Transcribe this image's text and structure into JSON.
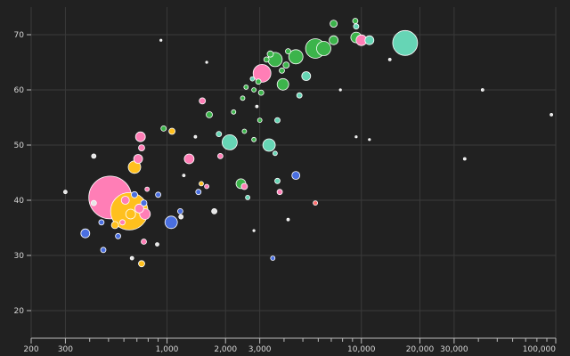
{
  "chart_data": {
    "type": "scatter",
    "title": "",
    "xlabel": "",
    "ylabel": "",
    "x_scale": "log",
    "xlim": [
      200,
      100000
    ],
    "ylim": [
      15,
      75
    ],
    "grid": true,
    "legend": "none",
    "background": "#212121",
    "group_colors": {
      "pink": "#ff7eb6",
      "yellow": "#ffc01e",
      "blue": "#4a6fe0",
      "green": "#3cb44b",
      "teal": "#66d5b5",
      "red": "#ff6e6e",
      "light": "#e5e5e5"
    },
    "x_ticks": [
      {
        "value": 200,
        "label": "200"
      },
      {
        "value": 300,
        "label": "300"
      },
      {
        "value": 1000,
        "label": "1,000"
      },
      {
        "value": 2000,
        "label": "2,000"
      },
      {
        "value": 3000,
        "label": "3,000"
      },
      {
        "value": 10000,
        "label": "10,000"
      },
      {
        "value": 20000,
        "label": "20,000"
      },
      {
        "value": 30000,
        "label": "30,000"
      },
      {
        "value": 100000,
        "label": "100,000"
      }
    ],
    "x_minor_ticks": [
      400,
      500,
      600,
      700,
      800,
      900,
      4000,
      5000,
      6000,
      7000,
      8000,
      9000,
      40000,
      50000,
      60000,
      70000,
      80000,
      90000
    ],
    "y_ticks": [
      20,
      30,
      40,
      50,
      60,
      70
    ],
    "points": [
      {
        "x": 510,
        "y": 40.5,
        "r": 24,
        "group": "pink"
      },
      {
        "x": 640,
        "y": 38.0,
        "r": 21,
        "group": "yellow"
      },
      {
        "x": 16800,
        "y": 68.5,
        "r": 14,
        "group": "teal"
      },
      {
        "x": 5800,
        "y": 67.5,
        "r": 11,
        "group": "green"
      },
      {
        "x": 3080,
        "y": 63.0,
        "r": 10,
        "group": "pink"
      },
      {
        "x": 4600,
        "y": 66.0,
        "r": 8,
        "group": "green"
      },
      {
        "x": 3600,
        "y": 65.5,
        "r": 8,
        "group": "green"
      },
      {
        "x": 2100,
        "y": 50.5,
        "r": 8.5,
        "group": "teal"
      },
      {
        "x": 3350,
        "y": 50.0,
        "r": 7,
        "group": "teal"
      },
      {
        "x": 3950,
        "y": 61.0,
        "r": 6.5,
        "group": "green"
      },
      {
        "x": 6400,
        "y": 67.5,
        "r": 8,
        "group": "green"
      },
      {
        "x": 7200,
        "y": 69.0,
        "r": 5,
        "group": "green"
      },
      {
        "x": 9400,
        "y": 69.5,
        "r": 6,
        "group": "green"
      },
      {
        "x": 10000,
        "y": 69.0,
        "r": 6,
        "group": "pink"
      },
      {
        "x": 11000,
        "y": 69.0,
        "r": 5,
        "group": "teal"
      },
      {
        "x": 5200,
        "y": 62.5,
        "r": 5,
        "group": "teal"
      },
      {
        "x": 7200,
        "y": 72.0,
        "r": 4,
        "group": "green"
      },
      {
        "x": 9300,
        "y": 72.5,
        "r": 3,
        "group": "green"
      },
      {
        "x": 9400,
        "y": 71.5,
        "r": 3,
        "group": "teal"
      },
      {
        "x": 3400,
        "y": 66.5,
        "r": 3.5,
        "group": "green"
      },
      {
        "x": 4100,
        "y": 64.5,
        "r": 3.5,
        "group": "green"
      },
      {
        "x": 3900,
        "y": 63.5,
        "r": 3,
        "group": "green"
      },
      {
        "x": 4200,
        "y": 67.0,
        "r": 3,
        "group": "green"
      },
      {
        "x": 3250,
        "y": 65.5,
        "r": 3,
        "group": "green"
      },
      {
        "x": 2950,
        "y": 61.5,
        "r": 3,
        "group": "green"
      },
      {
        "x": 3050,
        "y": 59.5,
        "r": 3,
        "group": "green"
      },
      {
        "x": 2800,
        "y": 60.0,
        "r": 2.5,
        "group": "green"
      },
      {
        "x": 2550,
        "y": 60.5,
        "r": 2.5,
        "group": "green"
      },
      {
        "x": 2450,
        "y": 58.5,
        "r": 2.5,
        "group": "green"
      },
      {
        "x": 2200,
        "y": 56.0,
        "r": 2.5,
        "group": "green"
      },
      {
        "x": 4800,
        "y": 59.0,
        "r": 3,
        "group": "teal"
      },
      {
        "x": 2750,
        "y": 62.0,
        "r": 2.5,
        "group": "teal"
      },
      {
        "x": 1650,
        "y": 55.5,
        "r": 3.5,
        "group": "green"
      },
      {
        "x": 1520,
        "y": 58.0,
        "r": 3.5,
        "group": "pink"
      },
      {
        "x": 960,
        "y": 53.0,
        "r": 3,
        "group": "green"
      },
      {
        "x": 1060,
        "y": 52.5,
        "r": 3.5,
        "group": "yellow"
      },
      {
        "x": 1850,
        "y": 52.0,
        "r": 3,
        "group": "teal"
      },
      {
        "x": 2500,
        "y": 52.5,
        "r": 2.5,
        "group": "green"
      },
      {
        "x": 3000,
        "y": 54.5,
        "r": 2.5,
        "group": "green"
      },
      {
        "x": 3700,
        "y": 54.5,
        "r": 3,
        "group": "teal"
      },
      {
        "x": 2800,
        "y": 51.0,
        "r": 2.5,
        "group": "green"
      },
      {
        "x": 3600,
        "y": 48.5,
        "r": 2.5,
        "group": "teal"
      },
      {
        "x": 730,
        "y": 51.5,
        "r": 5.5,
        "group": "pink"
      },
      {
        "x": 740,
        "y": 49.5,
        "r": 3.5,
        "group": "pink"
      },
      {
        "x": 710,
        "y": 47.5,
        "r": 5,
        "group": "pink"
      },
      {
        "x": 680,
        "y": 46.0,
        "r": 7,
        "group": "yellow"
      },
      {
        "x": 1300,
        "y": 47.5,
        "r": 5.5,
        "group": "pink"
      },
      {
        "x": 1880,
        "y": 48.0,
        "r": 3,
        "group": "pink"
      },
      {
        "x": 4600,
        "y": 44.5,
        "r": 4.5,
        "group": "blue"
      },
      {
        "x": 2400,
        "y": 43.0,
        "r": 5.5,
        "group": "green"
      },
      {
        "x": 2500,
        "y": 42.5,
        "r": 3.5,
        "group": "pink"
      },
      {
        "x": 3700,
        "y": 43.5,
        "r": 3,
        "group": "teal"
      },
      {
        "x": 3800,
        "y": 41.5,
        "r": 3,
        "group": "pink"
      },
      {
        "x": 2600,
        "y": 40.5,
        "r": 2.5,
        "group": "teal"
      },
      {
        "x": 1450,
        "y": 41.5,
        "r": 3,
        "group": "blue"
      },
      {
        "x": 1500,
        "y": 43.0,
        "r": 2.5,
        "group": "yellow"
      },
      {
        "x": 1600,
        "y": 42.5,
        "r": 2.5,
        "group": "pink"
      },
      {
        "x": 1750,
        "y": 38.0,
        "r": 3,
        "group": "light"
      },
      {
        "x": 1050,
        "y": 36.0,
        "r": 7,
        "group": "blue"
      },
      {
        "x": 1170,
        "y": 38.0,
        "r": 3,
        "group": "blue"
      },
      {
        "x": 1180,
        "y": 37.0,
        "r": 2.5,
        "group": "light"
      },
      {
        "x": 900,
        "y": 41.0,
        "r": 3,
        "group": "blue"
      },
      {
        "x": 790,
        "y": 42.0,
        "r": 2.5,
        "group": "pink"
      },
      {
        "x": 680,
        "y": 41.0,
        "r": 3.5,
        "group": "blue"
      },
      {
        "x": 610,
        "y": 40.0,
        "r": 4.5,
        "group": "pink"
      },
      {
        "x": 720,
        "y": 38.5,
        "r": 5,
        "group": "pink"
      },
      {
        "x": 650,
        "y": 37.5,
        "r": 5.5,
        "group": "yellow"
      },
      {
        "x": 770,
        "y": 37.5,
        "r": 6,
        "group": "pink"
      },
      {
        "x": 760,
        "y": 39.5,
        "r": 3.5,
        "group": "blue"
      },
      {
        "x": 540,
        "y": 35.5,
        "r": 4,
        "group": "yellow"
      },
      {
        "x": 590,
        "y": 36.0,
        "r": 3,
        "group": "pink"
      },
      {
        "x": 560,
        "y": 33.5,
        "r": 3,
        "group": "blue"
      },
      {
        "x": 460,
        "y": 36.0,
        "r": 3,
        "group": "blue"
      },
      {
        "x": 420,
        "y": 39.5,
        "r": 3,
        "group": "light"
      },
      {
        "x": 380,
        "y": 34.0,
        "r": 5,
        "group": "blue"
      },
      {
        "x": 470,
        "y": 31.0,
        "r": 3,
        "group": "blue"
      },
      {
        "x": 760,
        "y": 32.5,
        "r": 3,
        "group": "pink"
      },
      {
        "x": 740,
        "y": 28.5,
        "r": 3.5,
        "group": "yellow"
      },
      {
        "x": 890,
        "y": 32.0,
        "r": 2,
        "group": "light"
      },
      {
        "x": 3500,
        "y": 29.5,
        "r": 2.5,
        "group": "blue"
      },
      {
        "x": 5800,
        "y": 39.5,
        "r": 2.5,
        "group": "red"
      },
      {
        "x": 420,
        "y": 48.0,
        "r": 2.5,
        "group": "light"
      },
      {
        "x": 300,
        "y": 41.5,
        "r": 2,
        "group": "light"
      },
      {
        "x": 660,
        "y": 29.5,
        "r": 2,
        "group": "light"
      },
      {
        "x": 1220,
        "y": 44.5,
        "r": 1.5,
        "group": "light"
      },
      {
        "x": 4200,
        "y": 36.5,
        "r": 1.5,
        "group": "light"
      },
      {
        "x": 34000,
        "y": 47.5,
        "r": 1.5,
        "group": "light"
      },
      {
        "x": 42000,
        "y": 60.0,
        "r": 1.5,
        "group": "light"
      },
      {
        "x": 95000,
        "y": 55.5,
        "r": 1.5,
        "group": "light"
      },
      {
        "x": 9400,
        "y": 51.5,
        "r": 1.2,
        "group": "light"
      },
      {
        "x": 11000,
        "y": 51.0,
        "r": 1.2,
        "group": "light"
      },
      {
        "x": 7800,
        "y": 60.0,
        "r": 1.2,
        "group": "light"
      },
      {
        "x": 14000,
        "y": 65.5,
        "r": 1.5,
        "group": "light"
      },
      {
        "x": 2900,
        "y": 57.0,
        "r": 1.5,
        "group": "light"
      },
      {
        "x": 1400,
        "y": 51.5,
        "r": 1.5,
        "group": "light"
      },
      {
        "x": 1600,
        "y": 65.0,
        "r": 1.2,
        "group": "light"
      },
      {
        "x": 930,
        "y": 69.0,
        "r": 1.2,
        "group": "light"
      },
      {
        "x": 2800,
        "y": 34.5,
        "r": 1.2,
        "group": "light"
      }
    ]
  }
}
